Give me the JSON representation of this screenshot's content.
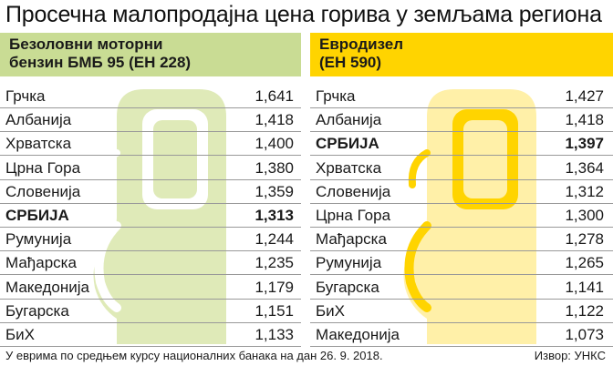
{
  "title": "Просечна малопродајна цена горива у земљама региона",
  "footnote": "У еврима по средњем курсу националних банака на дан 26. 9. 2018.",
  "source": "Извор: УНКС",
  "colors": {
    "gasoline_header": "#c9dc94",
    "gasoline_pump": "#dfeab8",
    "diesel_header": "#ffd400",
    "diesel_pump": "#fff0a8"
  },
  "chart_data": [
    {
      "type": "table",
      "title_lines": [
        "Безоловни моторни",
        "бензин БМБ 95 (ЕН 228)"
      ],
      "categories": [
        "Грчка",
        "Албанија",
        "Хрватска",
        "Црна Гора",
        "Словенија",
        "СРБИЈА",
        "Румунија",
        "Мађарска",
        "Македонија",
        "Бугарска",
        "БиХ"
      ],
      "values": [
        1.641,
        1.418,
        1.4,
        1.38,
        1.359,
        1.313,
        1.244,
        1.235,
        1.179,
        1.151,
        1.133
      ],
      "labels": [
        "1,641",
        "1,418",
        "1,400",
        "1,380",
        "1,359",
        "1,313",
        "1,244",
        "1,235",
        "1,179",
        "1,151",
        "1,133"
      ],
      "highlight": "СРБИЈА"
    },
    {
      "type": "table",
      "title_lines": [
        "Евродизел",
        "(ЕН 590)"
      ],
      "categories": [
        "Грчка",
        "Албанија",
        "СРБИЈА",
        "Хрватска",
        "Словенија",
        "Црна Гора",
        "Мађарска",
        "Румунија",
        "Бугарска",
        "БиХ",
        "Македонија"
      ],
      "values": [
        1.427,
        1.418,
        1.397,
        1.364,
        1.312,
        1.3,
        1.278,
        1.265,
        1.141,
        1.122,
        1.073
      ],
      "labels": [
        "1,427",
        "1,418",
        "1,397",
        "1,364",
        "1,312",
        "1,300",
        "1,278",
        "1,265",
        "1,141",
        "1,122",
        "1,073"
      ],
      "highlight": "СРБИЈА"
    }
  ]
}
